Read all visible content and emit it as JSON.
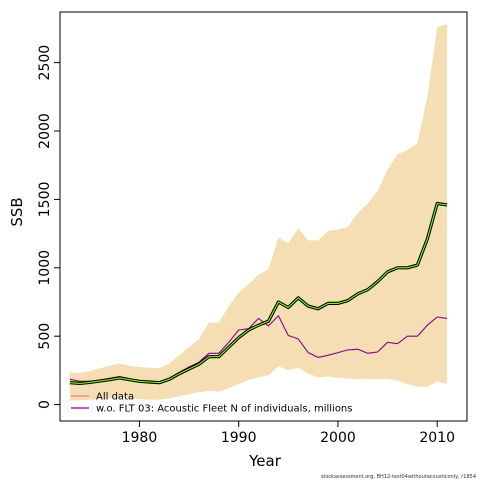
{
  "chart_data": {
    "type": "line",
    "xlabel": "Year",
    "ylabel": "SSB",
    "xlim": [
      1972,
      2013
    ],
    "ylim": [
      -120,
      2870
    ],
    "x_ticks": [
      1980,
      1990,
      2000,
      2010
    ],
    "y_ticks": [
      0,
      500,
      1000,
      1500,
      2000,
      2500
    ],
    "grid": false,
    "legend_placement": "bottom-left",
    "colors": {
      "band": "#f5deb3",
      "all_data_outer": "#000000",
      "all_data_inner": "#7cfc00",
      "legend_all_data": "#f08080",
      "without_flt03": "#8b008b"
    },
    "x": [
      1973,
      1974,
      1975,
      1976,
      1977,
      1978,
      1979,
      1980,
      1981,
      1982,
      1983,
      1984,
      1985,
      1986,
      1987,
      1988,
      1989,
      1990,
      1991,
      1992,
      1993,
      1994,
      1995,
      1996,
      1997,
      1998,
      1999,
      2000,
      2001,
      2002,
      2003,
      2004,
      2005,
      2006,
      2007,
      2008,
      2009,
      2010,
      2011
    ],
    "series": [
      {
        "name": "All data",
        "values": [
          160,
          155,
          162,
          172,
          182,
          195,
          182,
          170,
          165,
          160,
          185,
          225,
          260,
          295,
          350,
          350,
          420,
          490,
          545,
          580,
          610,
          750,
          710,
          780,
          720,
          700,
          740,
          740,
          760,
          810,
          840,
          900,
          970,
          1000,
          1000,
          1020,
          1210,
          1470,
          1460
        ],
        "lower": [
          30,
          32,
          35,
          40,
          45,
          50,
          45,
          40,
          35,
          35,
          45,
          60,
          75,
          90,
          100,
          95,
          120,
          150,
          180,
          200,
          215,
          280,
          250,
          270,
          225,
          200,
          205,
          195,
          190,
          185,
          190,
          185,
          190,
          175,
          150,
          130,
          130,
          170,
          150
        ],
        "upper": [
          235,
          232,
          245,
          265,
          282,
          300,
          285,
          275,
          270,
          265,
          300,
          360,
          420,
          480,
          600,
          600,
          720,
          820,
          880,
          950,
          990,
          1220,
          1180,
          1290,
          1200,
          1200,
          1270,
          1280,
          1300,
          1400,
          1470,
          1560,
          1720,
          1830,
          1860,
          1910,
          2250,
          2760,
          2780
        ]
      },
      {
        "name": "w.o. FLT 03: Acoustic Fleet  N of individuals, millions",
        "values": [
          185,
          170,
          170,
          180,
          192,
          205,
          188,
          175,
          170,
          165,
          190,
          235,
          275,
          310,
          375,
          375,
          455,
          545,
          555,
          630,
          575,
          650,
          505,
          480,
          380,
          345,
          360,
          380,
          400,
          405,
          375,
          385,
          455,
          445,
          500,
          500,
          580,
          640,
          630
        ]
      }
    ]
  },
  "footer": "stockassessment.org, BH12-test04withoutacousticonly, r1854"
}
